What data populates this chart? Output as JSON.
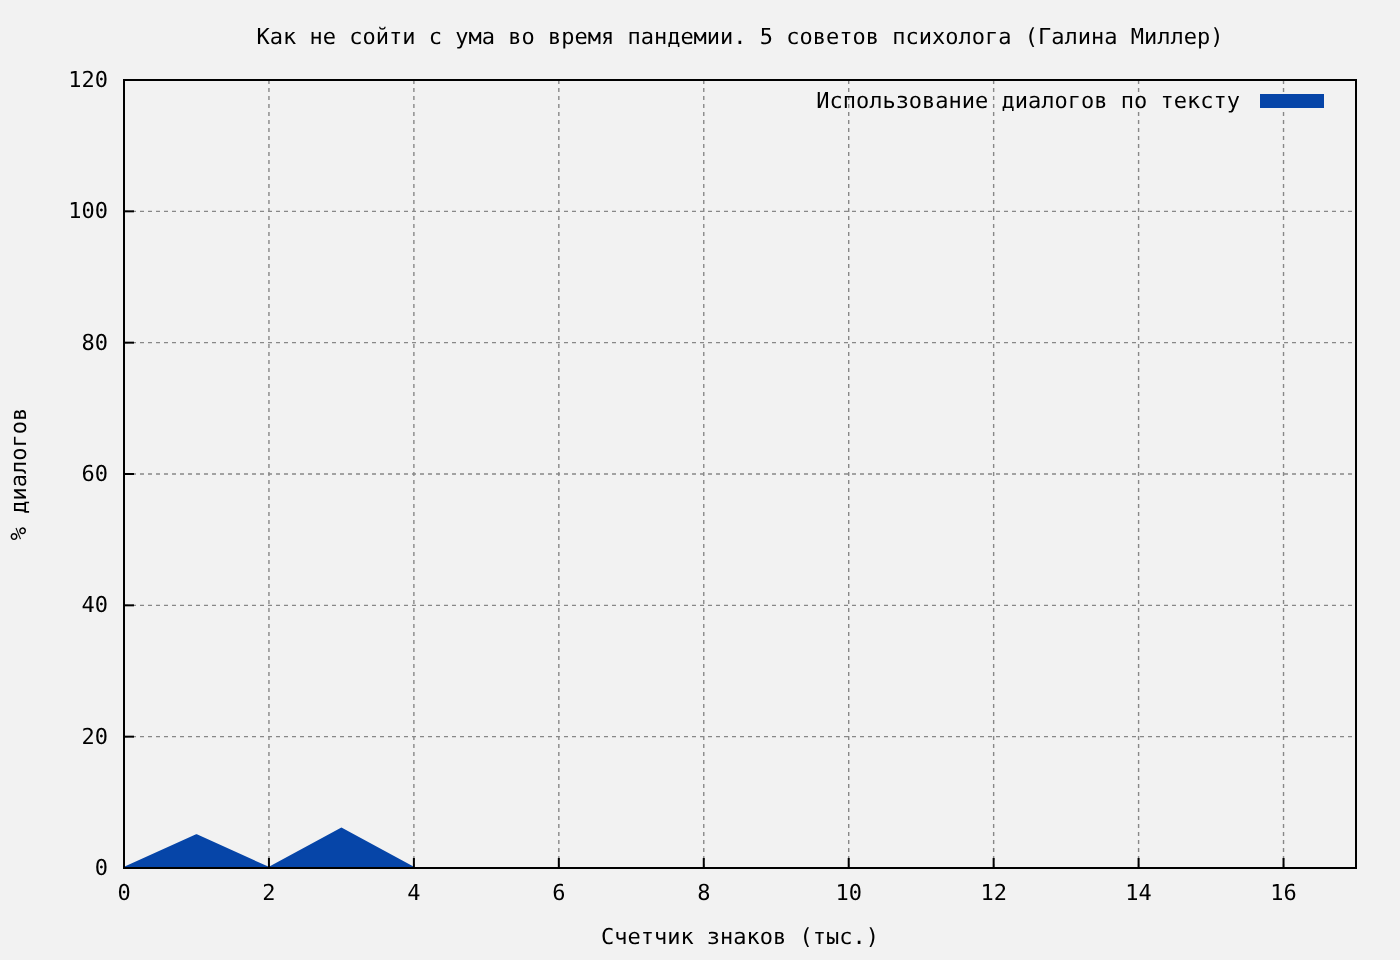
{
  "chart_data": {
    "type": "area",
    "title": "Как не сойти с ума во время пандемии. 5 советов психолога (Галина Миллер)",
    "xlabel": "Счетчик знаков (тыс.)",
    "ylabel": "% диалогов",
    "x": [
      0,
      1,
      2,
      3,
      4
    ],
    "series": [
      {
        "name": "Использование диалогов по тексту",
        "color": "#0645a8",
        "values": [
          0,
          5,
          0,
          6,
          0
        ]
      }
    ],
    "xlim": [
      0,
      17
    ],
    "xticks": [
      0,
      2,
      4,
      6,
      8,
      10,
      12,
      14,
      16
    ],
    "ylim": [
      0,
      120
    ],
    "yticks": [
      0,
      20,
      40,
      60,
      80,
      100,
      120
    ],
    "grid": true,
    "legend": "top right"
  }
}
